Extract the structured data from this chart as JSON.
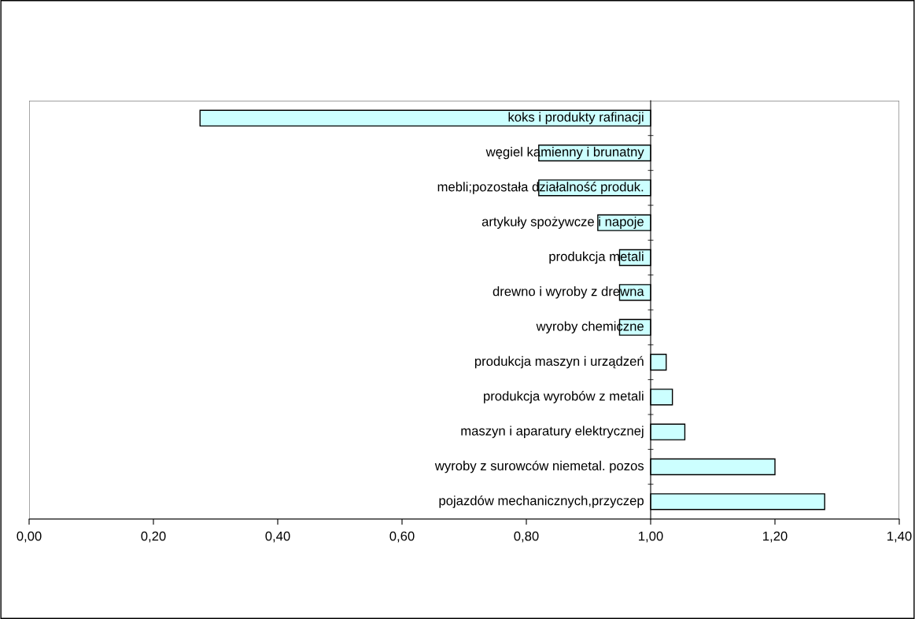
{
  "chart_data": {
    "type": "bar",
    "orientation": "horizontal",
    "categories": [
      "koks i produkty rafinacji",
      "węgiel kamienny i brunatny",
      "mebli;pozostała działalność produk.",
      "artykuły spożywcze i napoje",
      "produkcja metali",
      "drewno i wyroby z drewna",
      "wyroby chemiczne",
      "produkcja maszyn i urządzeń",
      "produkcja wyrobów z metali",
      "maszyn i aparatury elektrycznej",
      "wyroby z surowców niemetal. pozos",
      "pojazdów mechanicznych,przyczep"
    ],
    "base": [
      1,
      1,
      1,
      1,
      1,
      1,
      1,
      1,
      1,
      1,
      1,
      1
    ],
    "values": [
      -0.725,
      -0.18,
      -0.18,
      -0.085,
      -0.05,
      -0.05,
      -0.05,
      0.025,
      0.035,
      0.055,
      0.2,
      0.28
    ],
    "color": "#ccffff",
    "xlim": [
      0,
      1.4
    ],
    "xticks": [
      {
        "value": 0,
        "label": "0,00"
      },
      {
        "value": 0.2,
        "label": "0,20"
      },
      {
        "value": 0.4,
        "label": "0,40"
      },
      {
        "value": 0.6,
        "label": "0,60"
      },
      {
        "value": 0.8,
        "label": "0,80"
      },
      {
        "value": 1.0,
        "label": "1,00"
      },
      {
        "value": 1.2,
        "label": "1,20"
      },
      {
        "value": 1.4,
        "label": "1,40"
      }
    ],
    "grid": false,
    "legend": false
  }
}
